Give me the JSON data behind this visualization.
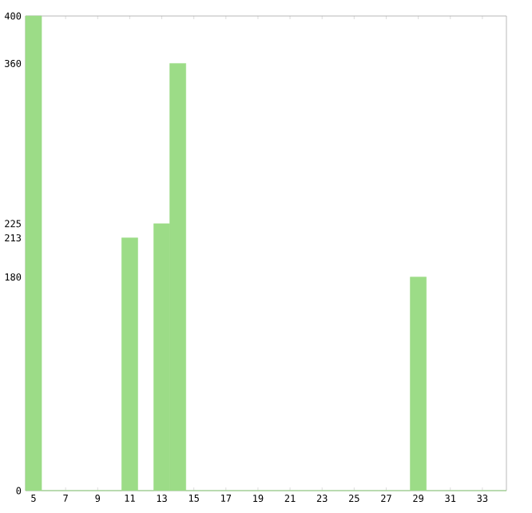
{
  "chart_data": {
    "type": "bar",
    "categories": [
      "5",
      null,
      "7",
      null,
      "9",
      null,
      "11",
      null,
      "13",
      null,
      "15",
      null,
      "17",
      null,
      "19",
      null,
      "21",
      null,
      "23",
      null,
      "25",
      null,
      "27",
      null,
      "29",
      null,
      "31",
      null,
      "33",
      null
    ],
    "values": [
      400,
      0,
      0,
      0,
      0,
      0,
      213,
      0,
      225,
      360,
      0,
      0,
      0,
      0,
      0,
      0,
      0,
      0,
      0,
      0,
      0,
      0,
      0,
      0,
      180,
      0,
      0,
      0,
      0,
      0
    ],
    "color": "#9cdc87",
    "ylim": [
      0,
      400
    ],
    "yticks": [
      0,
      180,
      213,
      225,
      360,
      400
    ],
    "grid": false
  }
}
